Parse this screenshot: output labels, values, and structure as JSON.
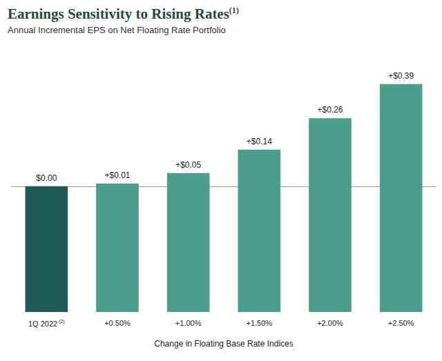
{
  "chart_data": {
    "type": "bar",
    "title": "Earnings Sensitivity to Rising Rates(1)",
    "subtitle": "Annual Incremental EPS on Net Floating Rate Portfolio",
    "x_label": "Change in Floating Base Rate Indices",
    "categories": [
      "1Q 2022(2)",
      "+0.50%",
      "+1.00%",
      "+1.50%",
      "+2.00%",
      "+2.50%"
    ],
    "values": [
      0,
      0.01,
      0.05,
      0.14,
      0.26,
      0.39
    ],
    "value_labels": [
      "$0.00",
      "+$0.01",
      "+$0.05",
      "+$0.14",
      "+$0.26",
      "+$0.39"
    ],
    "colors": [
      "#1d5a57",
      "#4c9e8c",
      "#4c9e8c",
      "#4c9e8c",
      "#4c9e8c",
      "#4c9e8c"
    ],
    "ylim": [
      -0.48,
      0.4
    ],
    "grid": false,
    "data_labels": true,
    "tick_labels": "x"
  }
}
